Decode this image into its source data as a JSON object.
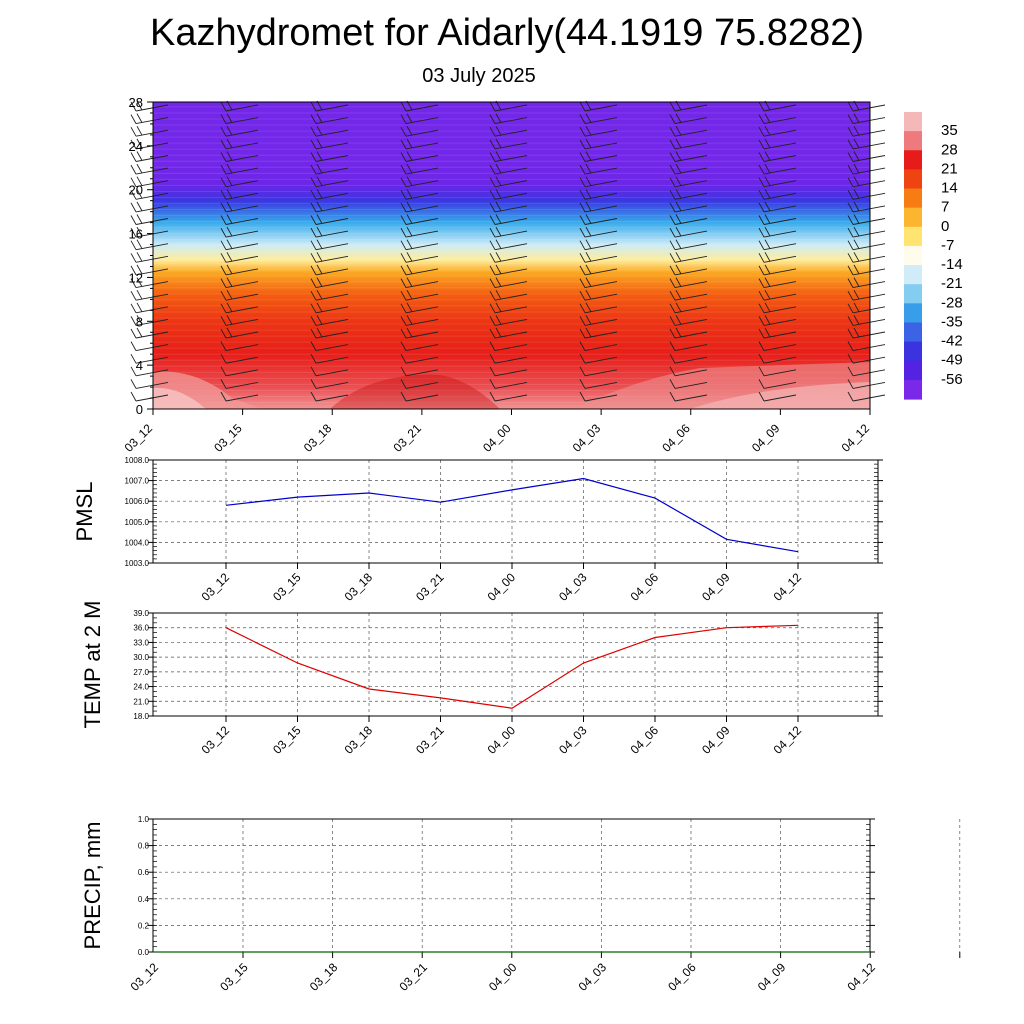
{
  "title": "Kazhydromet for Aidarly(44.1919 75.8282)",
  "subtitle": "03 July 2025",
  "chart_data": [
    {
      "type": "heatmap",
      "x_tick_labels": [
        "03_12",
        "03_15",
        "03_18",
        "03_21",
        "04_00",
        "04_03",
        "04_06",
        "04_09",
        "04_12"
      ],
      "y_tick_labels": [
        "0",
        "4",
        "8",
        "12",
        "16",
        "20",
        "24",
        "28"
      ],
      "ylim": [
        0,
        28
      ],
      "colorbar_labels": [
        "35",
        "28",
        "21",
        "14",
        "7",
        "0",
        "-7",
        "-14",
        "-21",
        "-28",
        "-35",
        "-42",
        "-49",
        "-56"
      ],
      "colorscale": [
        "#f5b8b8",
        "#e6141a",
        "#f04a10",
        "#fa9a14",
        "#ffe05a",
        "#ffffff",
        "#b6e2f4",
        "#38aaea",
        "#3c5ae6",
        "#3a1edc",
        "#7a28ea"
      ],
      "profile": [
        {
          "h": 0,
          "t": 33
        },
        {
          "h": 2,
          "t": 29
        },
        {
          "h": 5,
          "t": 24
        },
        {
          "h": 8,
          "t": 20
        },
        {
          "h": 10.5,
          "t": 14
        },
        {
          "h": 12.5,
          "t": 5
        },
        {
          "h": 13.6,
          "t": -6
        },
        {
          "h": 15,
          "t": -18
        },
        {
          "h": 17,
          "t": -30
        },
        {
          "h": 19,
          "t": -45
        },
        {
          "h": 20.5,
          "t": -56
        },
        {
          "h": 22.5,
          "t": -57
        },
        {
          "h": 28,
          "t": -57
        }
      ],
      "wind_barbs": "shown"
    },
    {
      "type": "line",
      "ylabel": "PMSL",
      "x": [
        "03_12",
        "03_15",
        "03_18",
        "03_21",
        "04_00",
        "04_03",
        "04_06",
        "04_09",
        "04_12"
      ],
      "values": [
        1005.8,
        1006.2,
        1006.4,
        1005.95,
        1006.55,
        1007.1,
        1006.15,
        1004.15,
        1003.55
      ],
      "ylim": [
        1003.0,
        1008.0
      ],
      "y_tick_labels": [
        "1003.0",
        "1004.0",
        "1005.0",
        "1006.0",
        "1007.0",
        "1008.0"
      ],
      "color": "#0000cc",
      "grid": true
    },
    {
      "type": "line",
      "ylabel": "TEMP at 2 M",
      "x": [
        "03_12",
        "03_15",
        "03_18",
        "03_21",
        "04_00",
        "04_03",
        "04_06",
        "04_09",
        "04_12"
      ],
      "values": [
        36.0,
        28.8,
        23.5,
        21.7,
        19.6,
        28.8,
        34.0,
        36.0,
        36.5
      ],
      "ylim": [
        18.0,
        39.0
      ],
      "y_tick_labels": [
        "18.0",
        "21.0",
        "24.0",
        "27.0",
        "30.0",
        "33.0",
        "36.0",
        "39.0"
      ],
      "color": "#dd0000",
      "grid": true
    },
    {
      "type": "line",
      "ylabel": "PRECIP, mm",
      "x": [
        "03_12",
        "03_15",
        "03_18",
        "03_21",
        "04_00",
        "04_03",
        "04_06",
        "04_09",
        "04_12"
      ],
      "values": [
        0,
        0,
        0,
        0,
        0,
        0,
        0,
        0,
        0
      ],
      "ylim": [
        0.0,
        1.0
      ],
      "y_tick_labels": [
        "0.0",
        "0.2",
        "0.4",
        "0.6",
        "0.8",
        "1.0"
      ],
      "color": "#006600",
      "grid": true
    }
  ]
}
